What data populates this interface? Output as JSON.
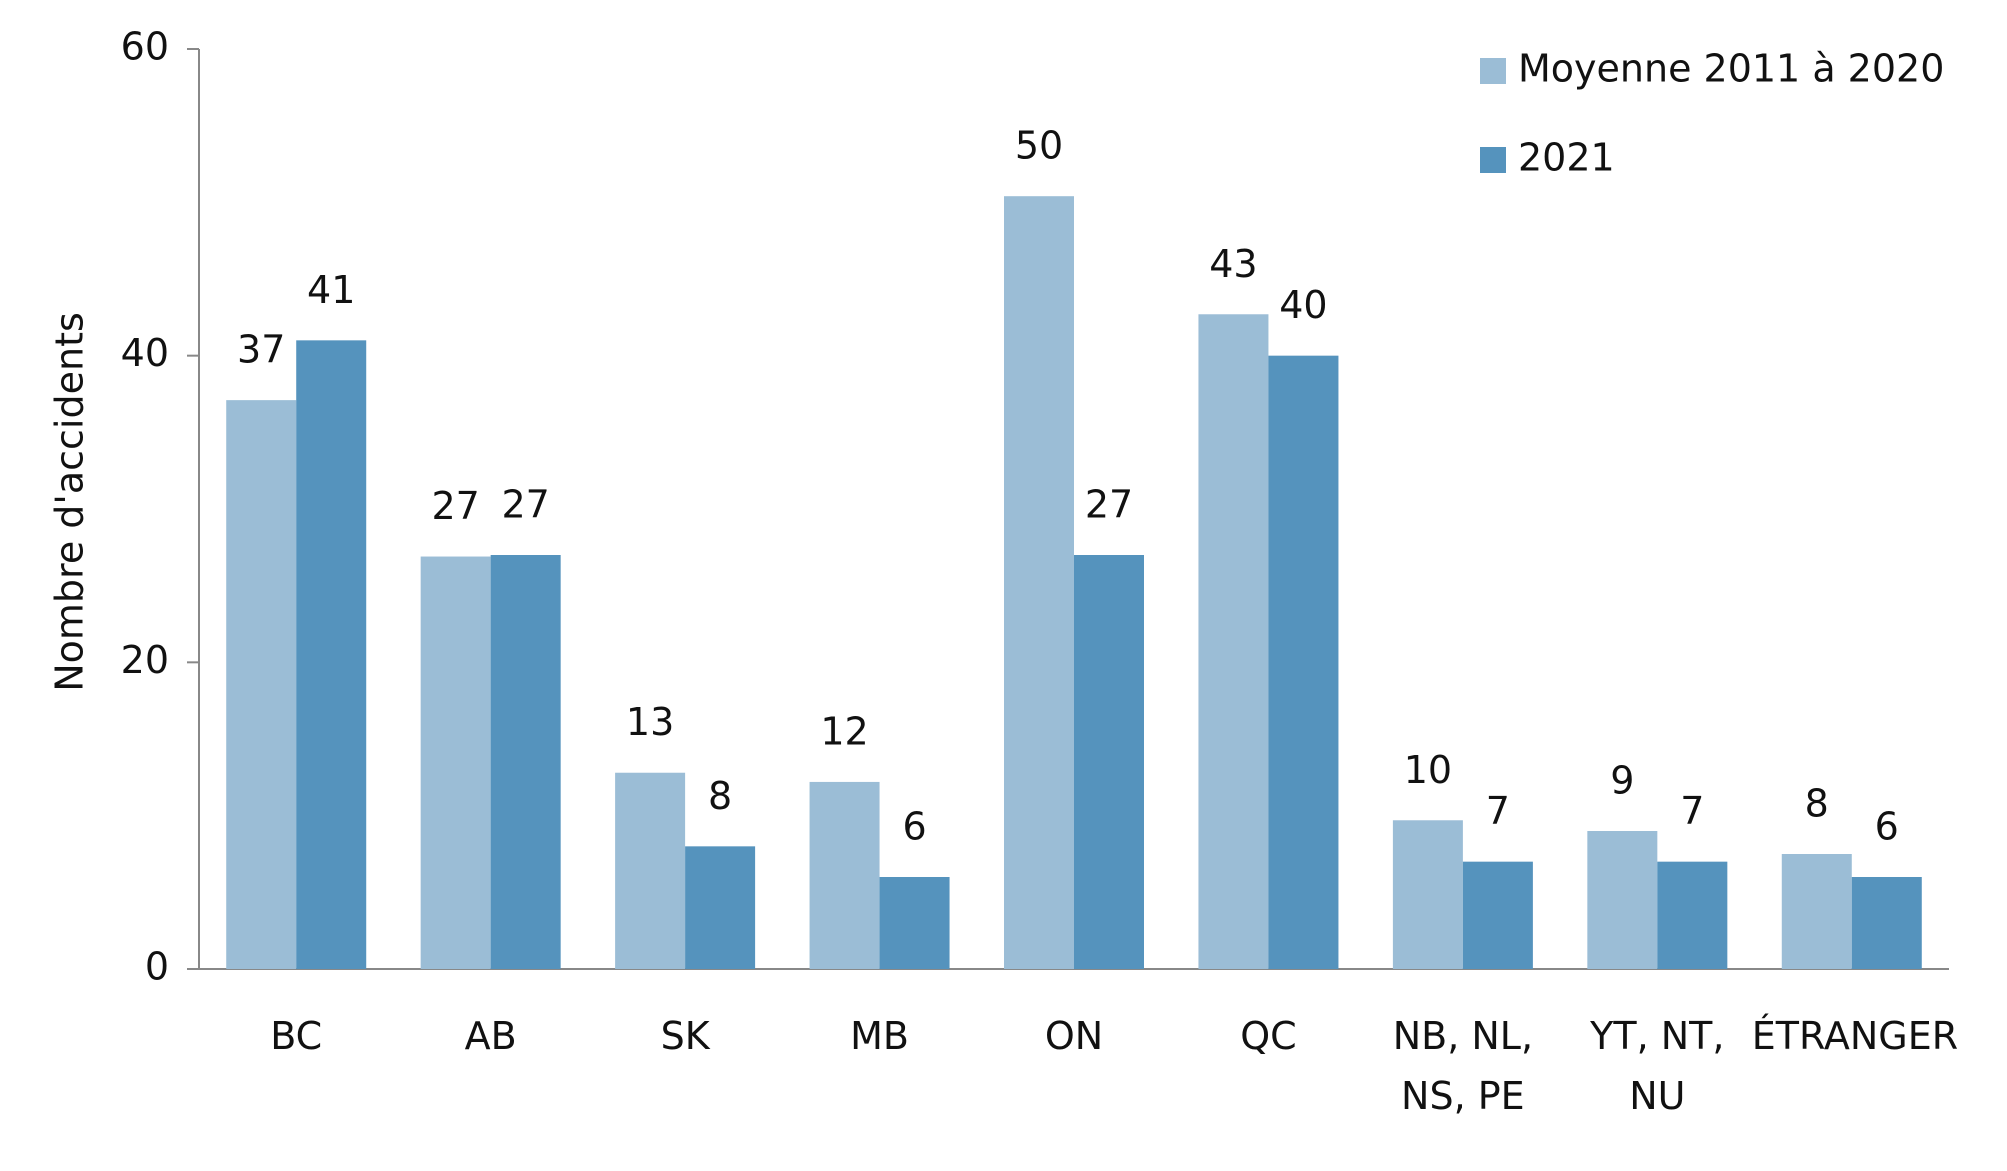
{
  "chart_data": {
    "type": "bar",
    "y_label": "Nombre d'accidents",
    "categories": [
      "BC",
      "AB",
      "SK",
      "MB",
      "ON",
      "QC",
      "NB, NL,\nNS, PE",
      "YT, NT,\nNU",
      "ÉTRANGER"
    ],
    "series": [
      {
        "name": "Moyenne 2011 à 2020",
        "color": "#9bbdd6",
        "values": [
          37.1,
          26.9,
          12.8,
          12.2,
          50.4,
          42.7,
          9.7,
          9.0,
          7.5
        ],
        "value_labels": [
          "37",
          "27",
          "13",
          "12",
          "50",
          "43",
          "10",
          "9",
          "8"
        ]
      },
      {
        "name": "2021",
        "color": "#5593bd",
        "values": [
          41,
          27,
          8,
          6,
          27,
          40,
          7,
          7,
          6
        ],
        "value_labels": [
          "41",
          "27",
          "8",
          "6",
          "27",
          "40",
          "7",
          "7",
          "6"
        ]
      }
    ],
    "ylim": [
      0,
      60
    ],
    "yticks": [
      0,
      20,
      40,
      60
    ],
    "grid": false,
    "legend": "top-right"
  }
}
